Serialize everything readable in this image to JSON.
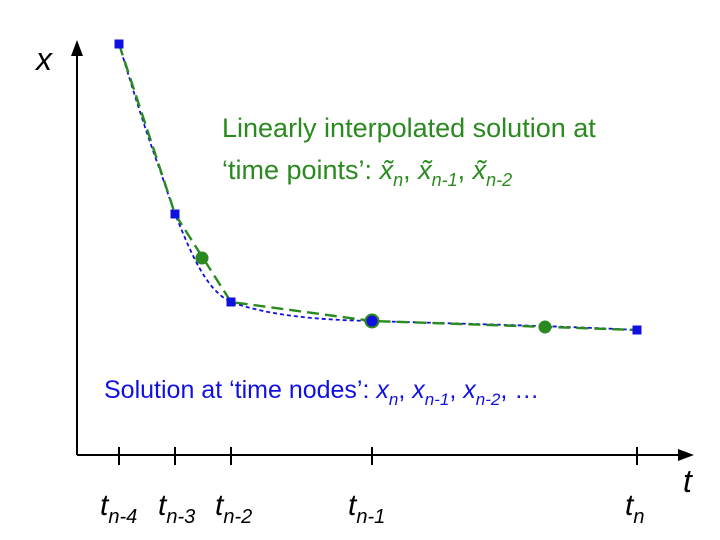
{
  "axes": {
    "y_label": "x",
    "x_label": "t"
  },
  "tick_labels": [
    {
      "base": "t",
      "sub": "n-4"
    },
    {
      "base": "t",
      "sub": "n-3"
    },
    {
      "base": "t",
      "sub": "n-2"
    },
    {
      "base": "t",
      "sub": "n-1"
    },
    {
      "base": "t",
      "sub": "n"
    }
  ],
  "green_annotation": {
    "line1": "Linearly interpolated solution at",
    "line2_prefix": "‘time points’: ",
    "items": [
      {
        "base": "x̃",
        "sub": "n"
      },
      {
        "base": "x̃",
        "sub": "n-1"
      },
      {
        "base": "x̃",
        "sub": "n-2"
      }
    ]
  },
  "blue_annotation": {
    "prefix": "Solution at ‘time nodes’: ",
    "items": [
      {
        "base": "x",
        "sub": "n"
      },
      {
        "base": "x",
        "sub": "n-1"
      },
      {
        "base": "x",
        "sub": "n-2"
      }
    ],
    "suffix": "…"
  },
  "colors": {
    "axis": "#000000",
    "nodes": "#1010e0",
    "interpolated": "#2a8a1f",
    "text_green": "#2a8a1f",
    "text_blue": "#1010e0"
  }
}
